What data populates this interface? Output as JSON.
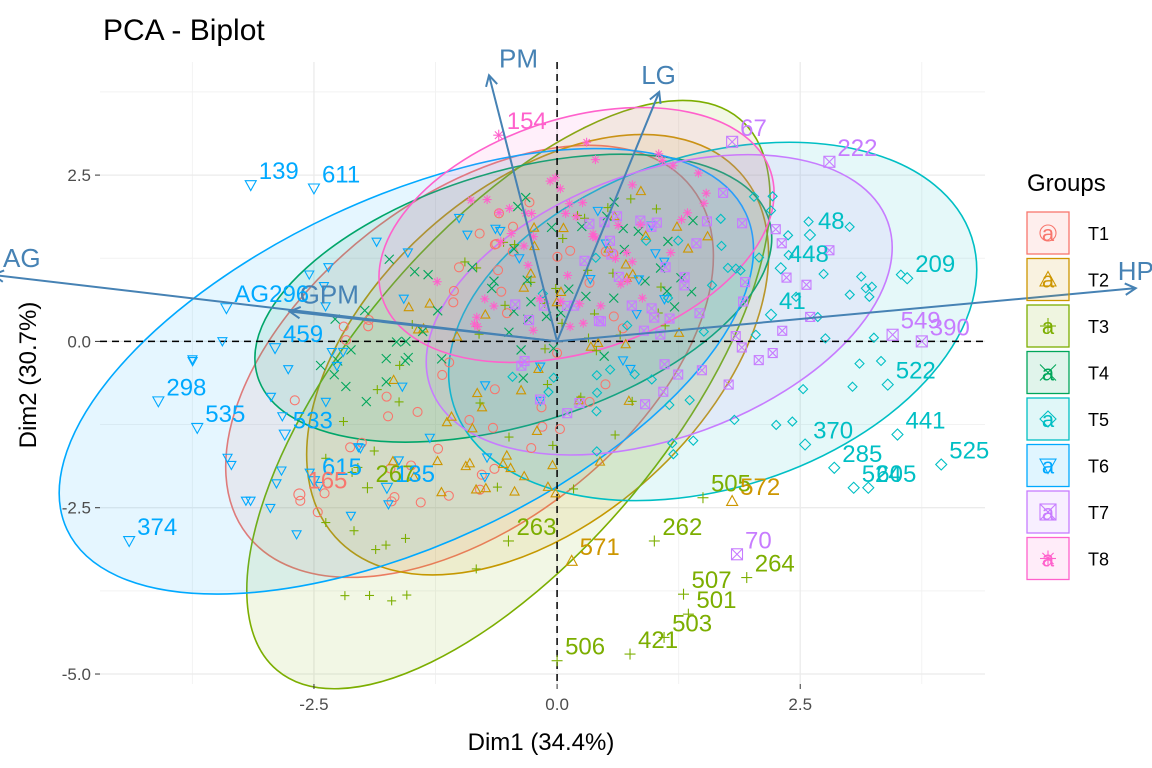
{
  "chart_data": {
    "type": "scatter",
    "title": "PCA - Biplot",
    "xlabel": "Dim1 (34.4%)",
    "ylabel": "Dim2 (30.7%)",
    "xlim": [
      -4.7,
      4.4
    ],
    "ylim": [
      -5.15,
      4.2
    ],
    "x_ticks": [
      {
        "value": -2.5,
        "label": "-2.5"
      },
      {
        "value": 0.0,
        "label": "0.0"
      },
      {
        "value": 2.5,
        "label": "2.5"
      }
    ],
    "y_ticks": [
      {
        "value": 2.5,
        "label": "2.5"
      },
      {
        "value": 0.0,
        "label": "0.0"
      },
      {
        "value": -2.5,
        "label": "-2.5"
      },
      {
        "value": -5.0,
        "label": "-5.0"
      }
    ],
    "grid": true,
    "legend": {
      "title": "Groups",
      "placement": "right",
      "entries": [
        {
          "name": "T1",
          "color": "#F8766D",
          "shape": "circle"
        },
        {
          "name": "T2",
          "color": "#CD9600",
          "shape": "triangle"
        },
        {
          "name": "T3",
          "color": "#7CAE00",
          "shape": "plus"
        },
        {
          "name": "T4",
          "color": "#00A65A",
          "shape": "cross"
        },
        {
          "name": "T5",
          "color": "#00BFC4",
          "shape": "diamond"
        },
        {
          "name": "T6",
          "color": "#00A9FF",
          "shape": "triangle-down"
        },
        {
          "name": "T7",
          "color": "#C77CFF",
          "shape": "square-cross"
        },
        {
          "name": "T8",
          "color": "#FF61CC",
          "shape": "asterisk"
        }
      ]
    },
    "variables": [
      {
        "name": "PM",
        "x": -0.7,
        "y": 4.0
      },
      {
        "name": "LG",
        "x": 1.05,
        "y": 3.75
      },
      {
        "name": "AG",
        "x": -5.8,
        "y": 1.0
      },
      {
        "name": "GPM",
        "x": -2.75,
        "y": 0.45
      },
      {
        "name": "HPP",
        "x": 5.95,
        "y": 0.8
      }
    ],
    "ellipses": [
      {
        "group": "T1",
        "cx": -0.9,
        "cy": -0.3,
        "rx": 2.9,
        "ry": 2.45,
        "angle": -38
      },
      {
        "group": "T2",
        "cx": -0.2,
        "cy": -0.2,
        "rx": 2.8,
        "ry": 2.5,
        "angle": -42
      },
      {
        "group": "T3",
        "cx": -0.5,
        "cy": -0.8,
        "rx": 3.7,
        "ry": 2.4,
        "angle": -50
      },
      {
        "group": "T4",
        "cx": -0.45,
        "cy": 0.65,
        "rx": 2.75,
        "ry": 1.9,
        "angle": -17
      },
      {
        "group": "T5",
        "cx": 1.6,
        "cy": 0.3,
        "rx": 2.8,
        "ry": 2.5,
        "angle": -18
      },
      {
        "group": "T6",
        "cx": -1.55,
        "cy": -0.45,
        "rx": 3.85,
        "ry": 2.6,
        "angle": -25
      },
      {
        "group": "T7",
        "cx": 1.05,
        "cy": 0.55,
        "rx": 2.5,
        "ry": 2.0,
        "angle": -20
      },
      {
        "group": "T8",
        "cx": 0.2,
        "cy": 1.6,
        "rx": 2.1,
        "ry": 1.75,
        "angle": -18
      }
    ],
    "labeled_points": [
      {
        "label": "154",
        "group": "T8",
        "x": -0.6,
        "y": 3.1
      },
      {
        "label": "67",
        "group": "T7",
        "x": 1.8,
        "y": 3.0
      },
      {
        "label": "222",
        "group": "T7",
        "x": 2.8,
        "y": 2.7
      },
      {
        "label": "611",
        "group": "T6",
        "x": -2.5,
        "y": 2.3
      },
      {
        "label": "139",
        "group": "T6",
        "x": -3.15,
        "y": 2.35
      },
      {
        "label": "48",
        "group": "T5",
        "x": 2.6,
        "y": 1.6
      },
      {
        "label": "448",
        "group": "T5",
        "x": 2.3,
        "y": 1.1
      },
      {
        "label": "209",
        "group": "T5",
        "x": 3.6,
        "y": 0.95
      },
      {
        "label": "41",
        "group": "T5",
        "x": 2.2,
        "y": 0.4
      },
      {
        "label": "AG296",
        "group": "T6",
        "x": -3.4,
        "y": 0.5
      },
      {
        "label": "549",
        "group": "T7",
        "x": 3.45,
        "y": 0.1
      },
      {
        "label": "390",
        "group": "T7",
        "x": 3.75,
        "y": 0.0
      },
      {
        "label": "459",
        "group": "T6",
        "x": -2.9,
        "y": -0.1
      },
      {
        "label": "298",
        "group": "T6",
        "x": -4.1,
        "y": -0.9
      },
      {
        "label": "522",
        "group": "T5",
        "x": 3.4,
        "y": -0.65
      },
      {
        "label": "441",
        "group": "T5",
        "x": 3.5,
        "y": -1.4
      },
      {
        "label": "370",
        "group": "T5",
        "x": 2.55,
        "y": -1.55
      },
      {
        "label": "285",
        "group": "T5",
        "x": 2.85,
        "y": -1.9
      },
      {
        "label": "605",
        "group": "T5",
        "x": 3.2,
        "y": -2.2
      },
      {
        "label": "524",
        "group": "T5",
        "x": 3.05,
        "y": -2.2
      },
      {
        "label": "525",
        "group": "T5",
        "x": 3.95,
        "y": -1.85
      },
      {
        "label": "535",
        "group": "T6",
        "x": -3.7,
        "y": -1.3
      },
      {
        "label": "533",
        "group": "T6",
        "x": -2.8,
        "y": -1.4
      },
      {
        "label": "615",
        "group": "T6",
        "x": -2.5,
        "y": -2.1
      },
      {
        "label": "267",
        "group": "T3",
        "x": -1.95,
        "y": -2.2
      },
      {
        "label": "374",
        "group": "T6",
        "x": -4.4,
        "y": -3.0
      },
      {
        "label": "165",
        "group": "T1",
        "x": -2.65,
        "y": -2.3
      },
      {
        "label": "135",
        "group": "T6",
        "x": -1.75,
        "y": -2.2
      },
      {
        "label": "505",
        "group": "T3",
        "x": 1.5,
        "y": -2.35
      },
      {
        "label": "572",
        "group": "T2",
        "x": 1.8,
        "y": -2.4
      },
      {
        "label": "262",
        "group": "T3",
        "x": 1.0,
        "y": -3.0
      },
      {
        "label": "70",
        "group": "T7",
        "x": 1.85,
        "y": -3.2
      },
      {
        "label": "263",
        "group": "T3",
        "x": -0.5,
        "y": -3.0
      },
      {
        "label": "264",
        "group": "T3",
        "x": 1.95,
        "y": -3.55
      },
      {
        "label": "571",
        "group": "T2",
        "x": 0.15,
        "y": -3.3
      },
      {
        "label": "507",
        "group": "T3",
        "x": 1.3,
        "y": -3.8
      },
      {
        "label": "501",
        "group": "T3",
        "x": 1.35,
        "y": -4.1
      },
      {
        "label": "503",
        "group": "T3",
        "x": 1.1,
        "y": -4.45
      },
      {
        "label": "421",
        "group": "T3",
        "x": 0.75,
        "y": -4.7
      },
      {
        "label": "506",
        "group": "T3",
        "x": 0.0,
        "y": -4.8
      }
    ]
  }
}
